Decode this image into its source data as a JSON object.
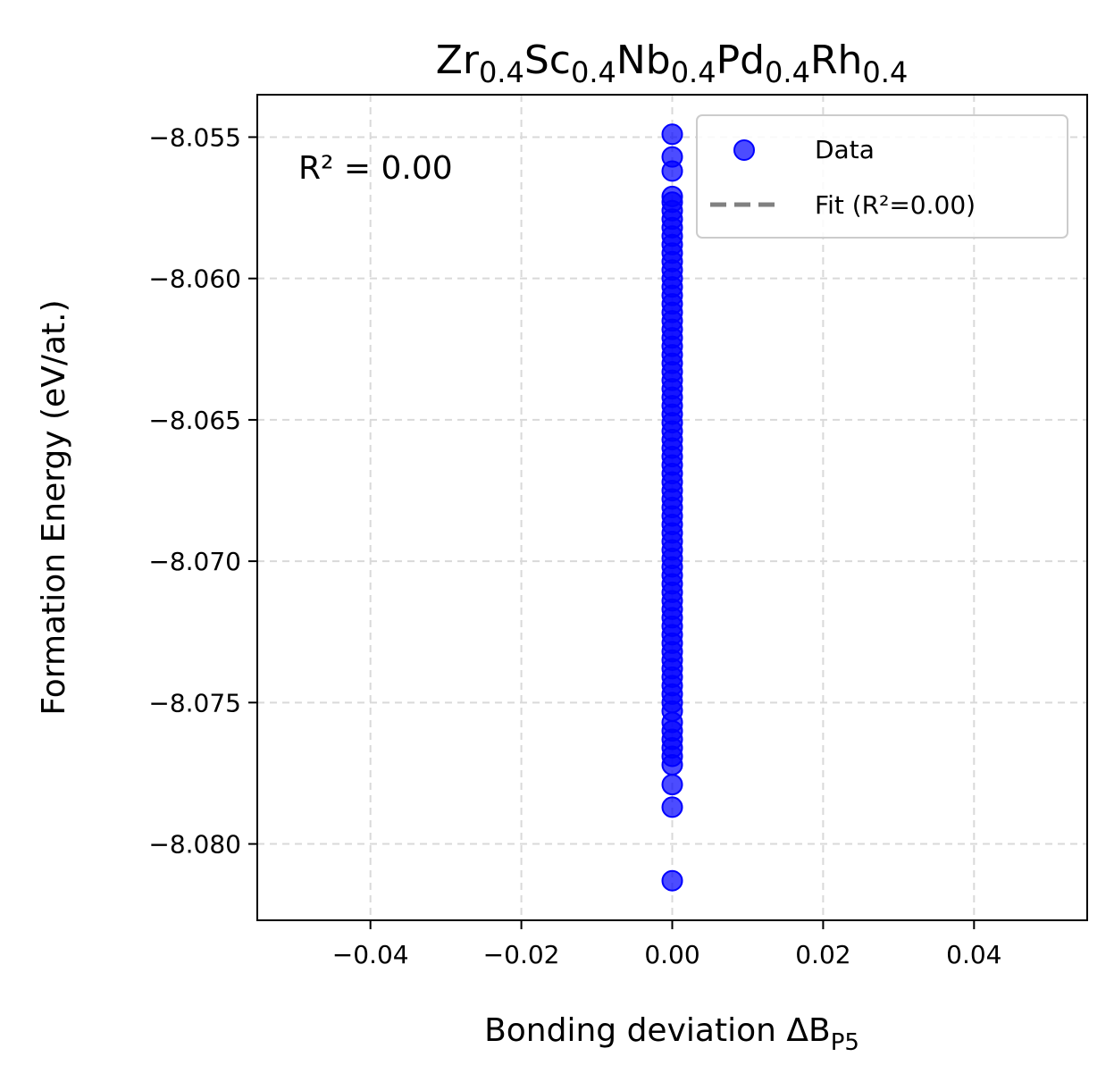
{
  "chart_data": {
    "type": "scatter",
    "title": {
      "base": "Zr",
      "parts": [
        [
          "Zr",
          "0.4"
        ],
        [
          "Sc",
          "0.4"
        ],
        [
          "Nb",
          "0.4"
        ],
        [
          "Pd",
          "0.4"
        ],
        [
          "Rh",
          "0.4"
        ]
      ]
    },
    "title_text": "Zr0.4Sc0.4Nb0.4Pd0.4Rh0.4",
    "xlabel": {
      "main": "Bonding deviation ΔB",
      "sub": "P5"
    },
    "ylabel": "Formation Energy (eV/at.)",
    "annotation": "R² = 0.00",
    "xlim": [
      -0.055,
      0.055
    ],
    "ylim": [
      -0.0827,
      -0.0535
    ],
    "y_offset": -8,
    "x_ticks": [
      -0.04,
      -0.02,
      0.0,
      0.02,
      0.04
    ],
    "x_tick_labels": [
      "−0.04",
      "−0.02",
      "0.00",
      "0.02",
      "0.04"
    ],
    "y_ticks": [
      -8.055,
      -8.06,
      -8.065,
      -8.07,
      -8.075,
      -8.08
    ],
    "y_tick_labels": [
      "−8.055",
      "−8.060",
      "−8.065",
      "−8.070",
      "−8.075",
      "−8.080"
    ],
    "grid": true,
    "legend_position": "top-right",
    "legend": [
      {
        "label": "Data",
        "kind": "marker",
        "color": "#0000ff"
      },
      {
        "label": "Fit (R²=0.00)",
        "kind": "dashed-line",
        "color": "#808080"
      }
    ],
    "series": [
      {
        "name": "Data",
        "color": "#0000ff",
        "x": 0.0,
        "y": [
          -8.0549,
          -8.0557,
          -8.0562,
          -8.0571,
          -8.0573,
          -8.0576,
          -8.0579,
          -8.0582,
          -8.0585,
          -8.0588,
          -8.0591,
          -8.0594,
          -8.0597,
          -8.06,
          -8.0603,
          -8.0606,
          -8.0609,
          -8.0612,
          -8.0615,
          -8.0618,
          -8.0621,
          -8.0624,
          -8.0627,
          -8.063,
          -8.0633,
          -8.0636,
          -8.0639,
          -8.0642,
          -8.0645,
          -8.0648,
          -8.0651,
          -8.0654,
          -8.0657,
          -8.066,
          -8.0663,
          -8.0666,
          -8.0669,
          -8.0672,
          -8.0675,
          -8.0678,
          -8.0681,
          -8.0684,
          -8.0687,
          -8.069,
          -8.0693,
          -8.0696,
          -8.0699,
          -8.0702,
          -8.0705,
          -8.0708,
          -8.0711,
          -8.0714,
          -8.0717,
          -8.072,
          -8.0723,
          -8.0726,
          -8.0729,
          -8.0732,
          -8.0735,
          -8.0738,
          -8.0741,
          -8.0744,
          -8.0747,
          -8.075,
          -8.0753,
          -8.0757,
          -8.076,
          -8.0763,
          -8.0766,
          -8.0769,
          -8.0772,
          -8.0779,
          -8.0787,
          -8.0813
        ]
      }
    ],
    "fit": {
      "name": "Fit (R²=0.00)",
      "color": "#808080"
    }
  }
}
